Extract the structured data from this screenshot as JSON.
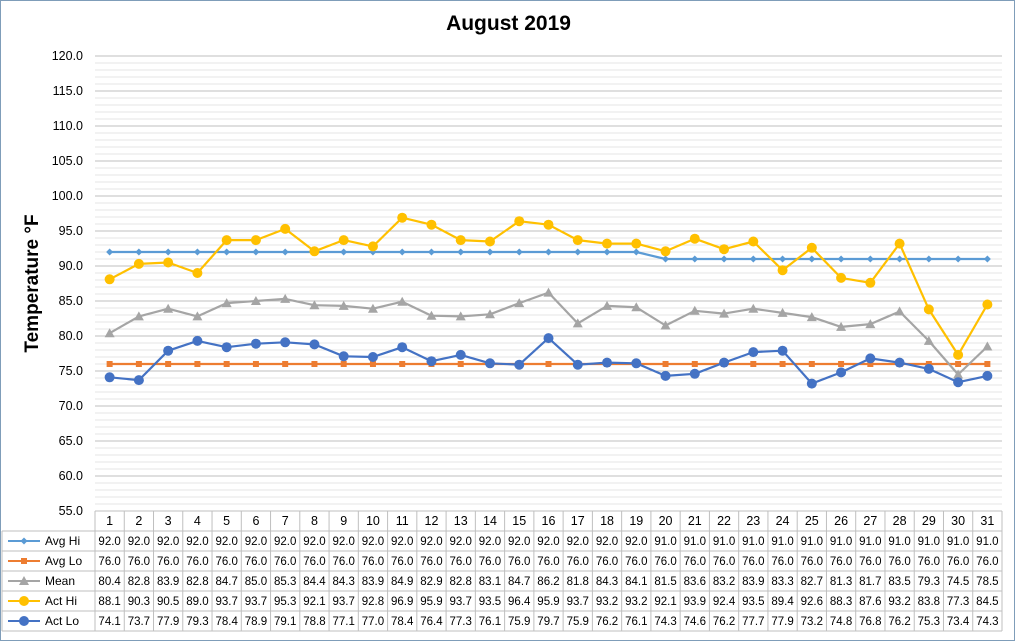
{
  "chart_data": {
    "type": "line",
    "title": "August 2019",
    "ylabel": "Temperature °F",
    "xlabel": "",
    "ylim": [
      55,
      120
    ],
    "ytick_step": 5,
    "grid": true,
    "legend": "data table rows below plot",
    "categories": [
      1,
      2,
      3,
      4,
      5,
      6,
      7,
      8,
      9,
      10,
      11,
      12,
      13,
      14,
      15,
      16,
      17,
      18,
      19,
      20,
      21,
      22,
      23,
      24,
      25,
      26,
      27,
      28,
      29,
      30,
      31
    ],
    "series": [
      {
        "name": "Avg Hi",
        "color": "#5b9bd5",
        "marker": "diamond",
        "values": [
          92.0,
          92.0,
          92.0,
          92.0,
          92.0,
          92.0,
          92.0,
          92.0,
          92.0,
          92.0,
          92.0,
          92.0,
          92.0,
          92.0,
          92.0,
          92.0,
          92.0,
          92.0,
          92.0,
          91.0,
          91.0,
          91.0,
          91.0,
          91.0,
          91.0,
          91.0,
          91.0,
          91.0,
          91.0,
          91.0,
          91.0
        ]
      },
      {
        "name": "Avg Lo",
        "color": "#ed7d31",
        "marker": "square",
        "values": [
          76.0,
          76.0,
          76.0,
          76.0,
          76.0,
          76.0,
          76.0,
          76.0,
          76.0,
          76.0,
          76.0,
          76.0,
          76.0,
          76.0,
          76.0,
          76.0,
          76.0,
          76.0,
          76.0,
          76.0,
          76.0,
          76.0,
          76.0,
          76.0,
          76.0,
          76.0,
          76.0,
          76.0,
          76.0,
          76.0,
          76.0
        ]
      },
      {
        "name": "Mean",
        "color": "#a5a5a5",
        "marker": "triangle",
        "values": [
          80.4,
          82.8,
          83.9,
          82.8,
          84.7,
          85.0,
          85.3,
          84.4,
          84.3,
          83.9,
          84.9,
          82.9,
          82.8,
          83.1,
          84.7,
          86.2,
          81.8,
          84.3,
          84.1,
          81.5,
          83.6,
          83.2,
          83.9,
          83.3,
          82.7,
          81.3,
          81.7,
          83.5,
          79.3,
          74.5,
          78.5
        ]
      },
      {
        "name": "Act Hi",
        "color": "#ffc000",
        "marker": "circle",
        "values": [
          88.1,
          90.3,
          90.5,
          89.0,
          93.7,
          93.7,
          95.3,
          92.1,
          93.7,
          92.8,
          96.9,
          95.9,
          93.7,
          93.5,
          96.4,
          95.9,
          93.7,
          93.2,
          93.2,
          92.1,
          93.9,
          92.4,
          93.5,
          89.4,
          92.6,
          88.3,
          87.6,
          93.2,
          83.8,
          77.3,
          84.5
        ]
      },
      {
        "name": "Act Lo",
        "color": "#4472c4",
        "marker": "circle",
        "values": [
          74.1,
          73.7,
          77.9,
          79.3,
          78.4,
          78.9,
          79.1,
          78.8,
          77.1,
          77.0,
          78.4,
          76.4,
          77.3,
          76.1,
          75.9,
          79.7,
          75.9,
          76.2,
          76.1,
          74.3,
          74.6,
          76.2,
          77.7,
          77.9,
          73.2,
          74.8,
          76.8,
          76.2,
          75.3,
          73.4,
          74.3
        ]
      }
    ]
  }
}
